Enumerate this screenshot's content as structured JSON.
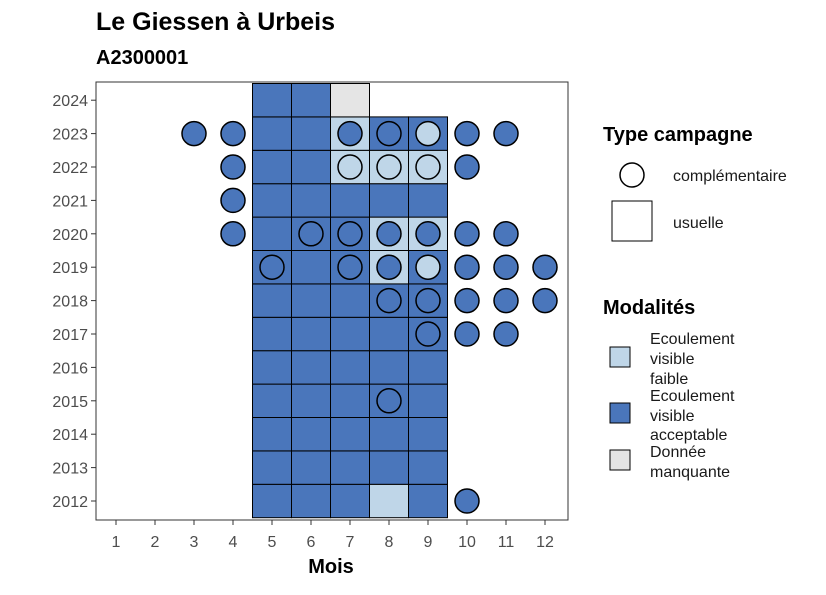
{
  "chart_data": {
    "type": "heatmap",
    "title": "Le Giessen à Urbeis",
    "subtitle": "A2300001",
    "xlabel": "Mois",
    "ylabel": "",
    "x_ticks": [
      "1",
      "2",
      "3",
      "4",
      "5",
      "6",
      "7",
      "8",
      "9",
      "10",
      "11",
      "12"
    ],
    "y_ticks": [
      "2012",
      "2013",
      "2014",
      "2015",
      "2016",
      "2017",
      "2018",
      "2019",
      "2020",
      "2021",
      "2022",
      "2023",
      "2024"
    ],
    "colors": {
      "faible": "#bfd6e8",
      "acceptable": "#4a76bb",
      "manquante": "#e5e5e5",
      "border": "#000000"
    },
    "legend_type": {
      "title": "Type campagne",
      "items": [
        {
          "key": "complementaire",
          "label": "complémentaire",
          "shape": "circle"
        },
        {
          "key": "usuelle",
          "label": "usuelle",
          "shape": "square"
        }
      ]
    },
    "legend_modalites": {
      "title": "Modalités",
      "items": [
        {
          "key": "faible",
          "lines": [
            "Ecoulement",
            "visible",
            "faible"
          ]
        },
        {
          "key": "acceptable",
          "lines": [
            "Ecoulement",
            "visible",
            "acceptable"
          ]
        },
        {
          "key": "manquante",
          "lines": [
            "Donnée",
            "manquante"
          ]
        }
      ]
    },
    "usuelle": [
      {
        "year": 2012,
        "month": 5,
        "value": "acceptable"
      },
      {
        "year": 2012,
        "month": 6,
        "value": "acceptable"
      },
      {
        "year": 2012,
        "month": 7,
        "value": "acceptable"
      },
      {
        "year": 2012,
        "month": 8,
        "value": "faible"
      },
      {
        "year": 2012,
        "month": 9,
        "value": "acceptable"
      },
      {
        "year": 2013,
        "month": 5,
        "value": "acceptable"
      },
      {
        "year": 2013,
        "month": 6,
        "value": "acceptable"
      },
      {
        "year": 2013,
        "month": 7,
        "value": "acceptable"
      },
      {
        "year": 2013,
        "month": 8,
        "value": "acceptable"
      },
      {
        "year": 2013,
        "month": 9,
        "value": "acceptable"
      },
      {
        "year": 2014,
        "month": 5,
        "value": "acceptable"
      },
      {
        "year": 2014,
        "month": 6,
        "value": "acceptable"
      },
      {
        "year": 2014,
        "month": 7,
        "value": "acceptable"
      },
      {
        "year": 2014,
        "month": 8,
        "value": "acceptable"
      },
      {
        "year": 2014,
        "month": 9,
        "value": "acceptable"
      },
      {
        "year": 2015,
        "month": 5,
        "value": "acceptable"
      },
      {
        "year": 2015,
        "month": 6,
        "value": "acceptable"
      },
      {
        "year": 2015,
        "month": 7,
        "value": "acceptable"
      },
      {
        "year": 2015,
        "month": 8,
        "value": "acceptable"
      },
      {
        "year": 2015,
        "month": 9,
        "value": "acceptable"
      },
      {
        "year": 2016,
        "month": 5,
        "value": "acceptable"
      },
      {
        "year": 2016,
        "month": 6,
        "value": "acceptable"
      },
      {
        "year": 2016,
        "month": 7,
        "value": "acceptable"
      },
      {
        "year": 2016,
        "month": 8,
        "value": "acceptable"
      },
      {
        "year": 2016,
        "month": 9,
        "value": "acceptable"
      },
      {
        "year": 2017,
        "month": 5,
        "value": "acceptable"
      },
      {
        "year": 2017,
        "month": 6,
        "value": "acceptable"
      },
      {
        "year": 2017,
        "month": 7,
        "value": "acceptable"
      },
      {
        "year": 2017,
        "month": 8,
        "value": "acceptable"
      },
      {
        "year": 2017,
        "month": 9,
        "value": "acceptable"
      },
      {
        "year": 2018,
        "month": 5,
        "value": "acceptable"
      },
      {
        "year": 2018,
        "month": 6,
        "value": "acceptable"
      },
      {
        "year": 2018,
        "month": 7,
        "value": "acceptable"
      },
      {
        "year": 2018,
        "month": 8,
        "value": "acceptable"
      },
      {
        "year": 2018,
        "month": 9,
        "value": "acceptable"
      },
      {
        "year": 2019,
        "month": 5,
        "value": "acceptable"
      },
      {
        "year": 2019,
        "month": 6,
        "value": "acceptable"
      },
      {
        "year": 2019,
        "month": 7,
        "value": "acceptable"
      },
      {
        "year": 2019,
        "month": 8,
        "value": "faible"
      },
      {
        "year": 2019,
        "month": 9,
        "value": "acceptable"
      },
      {
        "year": 2020,
        "month": 5,
        "value": "acceptable"
      },
      {
        "year": 2020,
        "month": 6,
        "value": "acceptable"
      },
      {
        "year": 2020,
        "month": 7,
        "value": "acceptable"
      },
      {
        "year": 2020,
        "month": 8,
        "value": "faible"
      },
      {
        "year": 2020,
        "month": 9,
        "value": "faible"
      },
      {
        "year": 2021,
        "month": 5,
        "value": "acceptable"
      },
      {
        "year": 2021,
        "month": 6,
        "value": "acceptable"
      },
      {
        "year": 2021,
        "month": 7,
        "value": "acceptable"
      },
      {
        "year": 2021,
        "month": 8,
        "value": "acceptable"
      },
      {
        "year": 2021,
        "month": 9,
        "value": "acceptable"
      },
      {
        "year": 2022,
        "month": 5,
        "value": "acceptable"
      },
      {
        "year": 2022,
        "month": 6,
        "value": "acceptable"
      },
      {
        "year": 2022,
        "month": 7,
        "value": "faible"
      },
      {
        "year": 2022,
        "month": 8,
        "value": "faible"
      },
      {
        "year": 2022,
        "month": 9,
        "value": "faible"
      },
      {
        "year": 2023,
        "month": 5,
        "value": "acceptable"
      },
      {
        "year": 2023,
        "month": 6,
        "value": "acceptable"
      },
      {
        "year": 2023,
        "month": 7,
        "value": "faible"
      },
      {
        "year": 2023,
        "month": 8,
        "value": "acceptable"
      },
      {
        "year": 2023,
        "month": 9,
        "value": "acceptable"
      },
      {
        "year": 2024,
        "month": 5,
        "value": "acceptable"
      },
      {
        "year": 2024,
        "month": 6,
        "value": "acceptable"
      },
      {
        "year": 2024,
        "month": 7,
        "value": "manquante"
      }
    ],
    "complementaire": [
      {
        "year": 2012,
        "month": 10,
        "value": "acceptable"
      },
      {
        "year": 2015,
        "month": 8,
        "value": "acceptable"
      },
      {
        "year": 2017,
        "month": 9,
        "value": "acceptable"
      },
      {
        "year": 2017,
        "month": 10,
        "value": "acceptable"
      },
      {
        "year": 2017,
        "month": 11,
        "value": "acceptable"
      },
      {
        "year": 2018,
        "month": 8,
        "value": "acceptable"
      },
      {
        "year": 2018,
        "month": 9,
        "value": "acceptable"
      },
      {
        "year": 2018,
        "month": 10,
        "value": "acceptable"
      },
      {
        "year": 2018,
        "month": 11,
        "value": "acceptable"
      },
      {
        "year": 2018,
        "month": 12,
        "value": "acceptable"
      },
      {
        "year": 2019,
        "month": 5,
        "value": "acceptable"
      },
      {
        "year": 2019,
        "month": 7,
        "value": "acceptable"
      },
      {
        "year": 2019,
        "month": 8,
        "value": "acceptable"
      },
      {
        "year": 2019,
        "month": 9,
        "value": "faible"
      },
      {
        "year": 2019,
        "month": 10,
        "value": "acceptable"
      },
      {
        "year": 2019,
        "month": 11,
        "value": "acceptable"
      },
      {
        "year": 2019,
        "month": 12,
        "value": "acceptable"
      },
      {
        "year": 2020,
        "month": 4,
        "value": "acceptable"
      },
      {
        "year": 2020,
        "month": 6,
        "value": "acceptable"
      },
      {
        "year": 2020,
        "month": 7,
        "value": "acceptable"
      },
      {
        "year": 2020,
        "month": 8,
        "value": "acceptable"
      },
      {
        "year": 2020,
        "month": 9,
        "value": "acceptable"
      },
      {
        "year": 2020,
        "month": 10,
        "value": "acceptable"
      },
      {
        "year": 2020,
        "month": 11,
        "value": "acceptable"
      },
      {
        "year": 2021,
        "month": 4,
        "value": "acceptable"
      },
      {
        "year": 2022,
        "month": 4,
        "value": "acceptable"
      },
      {
        "year": 2022,
        "month": 7,
        "value": "faible"
      },
      {
        "year": 2022,
        "month": 8,
        "value": "faible"
      },
      {
        "year": 2022,
        "month": 9,
        "value": "faible"
      },
      {
        "year": 2022,
        "month": 10,
        "value": "acceptable"
      },
      {
        "year": 2023,
        "month": 3,
        "value": "acceptable"
      },
      {
        "year": 2023,
        "month": 4,
        "value": "acceptable"
      },
      {
        "year": 2023,
        "month": 7,
        "value": "acceptable"
      },
      {
        "year": 2023,
        "month": 8,
        "value": "acceptable"
      },
      {
        "year": 2023,
        "month": 9,
        "value": "faible"
      },
      {
        "year": 2023,
        "month": 10,
        "value": "acceptable"
      },
      {
        "year": 2023,
        "month": 11,
        "value": "acceptable"
      }
    ]
  }
}
